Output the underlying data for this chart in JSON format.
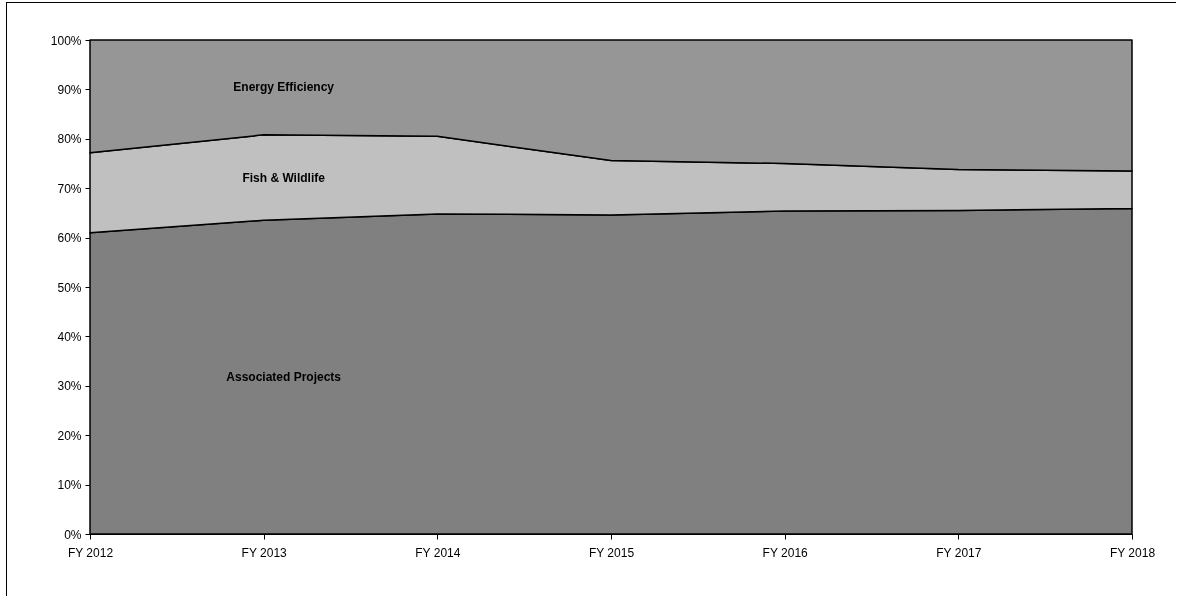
{
  "chart_data": {
    "type": "area",
    "stacked": true,
    "categories": [
      "FY 2012",
      "FY 2013",
      "FY 2014",
      "FY 2015",
      "FY 2016",
      "FY 2017",
      "FY 2018"
    ],
    "series": [
      {
        "name": "Associated Projects",
        "color": "#808080",
        "values": [
          61.0,
          63.5,
          64.8,
          64.6,
          65.4,
          65.5,
          65.9
        ]
      },
      {
        "name": "Fish & Wildlife",
        "color": "#c0c0c0",
        "values": [
          16.2,
          17.3,
          15.7,
          11.0,
          9.6,
          8.3,
          7.6
        ]
      },
      {
        "name": "Energy Efficiency",
        "color": "#969696",
        "values": [
          22.8,
          19.2,
          19.5,
          24.4,
          25.0,
          26.2,
          26.5
        ]
      }
    ],
    "ylim": [
      0,
      100
    ],
    "yticks": [
      {
        "value": 0,
        "label": "0%"
      },
      {
        "value": 10,
        "label": "10%"
      },
      {
        "value": 20,
        "label": "20%"
      },
      {
        "value": 30,
        "label": "30%"
      },
      {
        "value": 40,
        "label": "40%"
      },
      {
        "value": 50,
        "label": "50%"
      },
      {
        "value": 60,
        "label": "60%"
      },
      {
        "value": 70,
        "label": "70%"
      },
      {
        "value": 80,
        "label": "80%"
      },
      {
        "value": 90,
        "label": "90%"
      },
      {
        "value": 100,
        "label": "100%"
      }
    ],
    "grid": false,
    "legend": false
  }
}
